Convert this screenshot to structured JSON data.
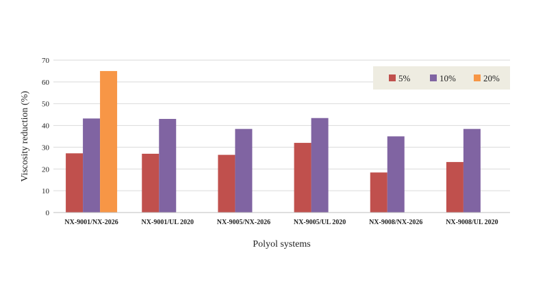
{
  "chart_data": {
    "type": "bar",
    "title": "",
    "xlabel": "Polyol systems",
    "ylabel": "Viscosity reduction (%)",
    "ylim": [
      0,
      70
    ],
    "yticks": [
      0,
      10,
      20,
      30,
      40,
      50,
      60,
      70
    ],
    "grid": true,
    "legend_position": "top-right",
    "categories": [
      "NX-9001/NX-2026",
      "NX-9001/UL 2020",
      "NX-9005/NX-2026",
      "NX-9005/UL 2020",
      "NX-9008/NX-2026",
      "NX-9008/UL 2020"
    ],
    "series": [
      {
        "name": "5%",
        "color": "#c0504d",
        "values": [
          27.2,
          27.0,
          26.5,
          32.0,
          18.4,
          23.2
        ]
      },
      {
        "name": "10%",
        "color": "#8064a2",
        "values": [
          43.2,
          43.0,
          38.4,
          43.4,
          35.0,
          38.4
        ]
      },
      {
        "name": "20%",
        "color": "#f79646",
        "values": [
          65.0,
          null,
          null,
          null,
          null,
          null
        ]
      }
    ],
    "legend_bg": "#eeece1",
    "grid_color": "#d9d9d9"
  }
}
